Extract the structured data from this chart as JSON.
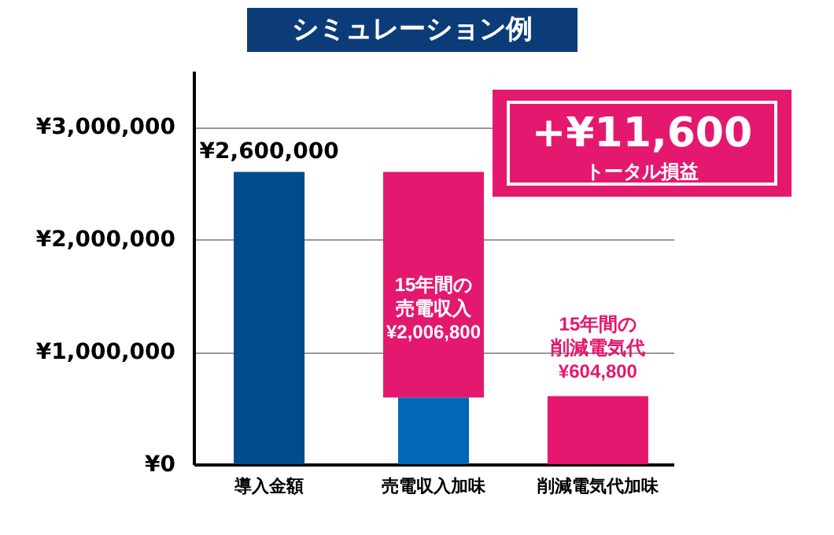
{
  "chart_data": {
    "type": "bar",
    "title": "シミュレーション例",
    "stacked": true,
    "categories": [
      "導入金額",
      "売電収入加味",
      "削減電気代加味"
    ],
    "series": [
      {
        "colors": [
          "#004b8b",
          "#0068b4",
          null
        ],
        "values": [
          2600000,
          593200,
          null
        ],
        "value_labels": [
          "¥2,600,000",
          null,
          null
        ]
      },
      {
        "color": "#e4186f",
        "values": [
          null,
          2006800,
          604800
        ],
        "value_labels": [
          null,
          "15年間の売電収入¥2,006,800",
          "15年間の削減電気代¥604,800"
        ]
      }
    ],
    "ylim": [
      0,
      3500000
    ],
    "yticks": [
      {
        "value": 0,
        "label": "¥0"
      },
      {
        "value": 1000000,
        "label": "¥1,000,000"
      },
      {
        "value": 2000000,
        "label": "¥2,000,000"
      },
      {
        "value": 3000000,
        "label": "¥3,000,000"
      }
    ],
    "grid": "y",
    "legend": false,
    "annotations": [
      "+¥11,600\nトータル損益"
    ]
  }
}
